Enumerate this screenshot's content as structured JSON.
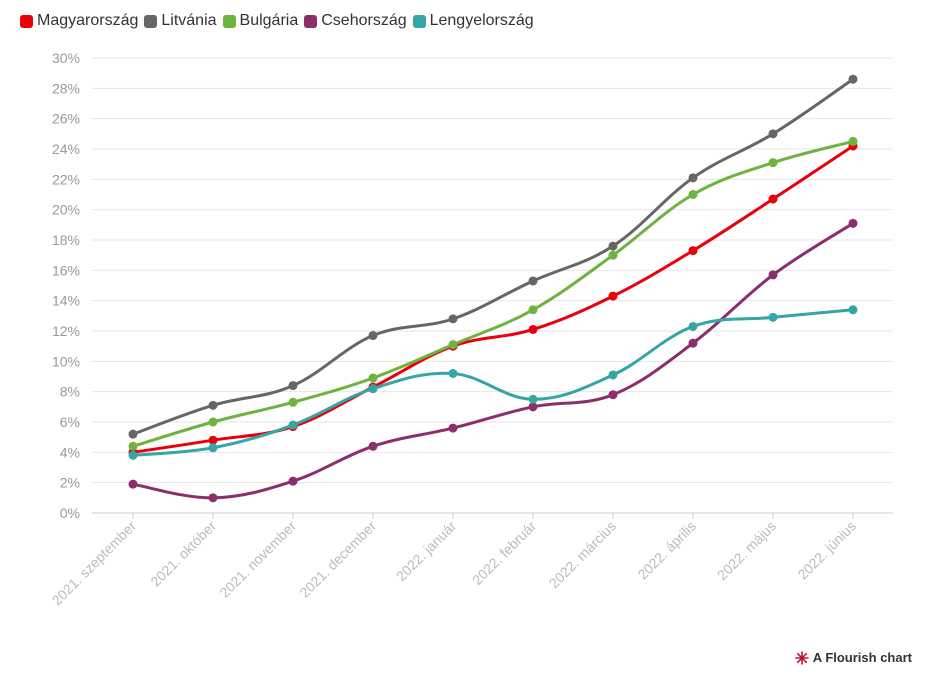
{
  "chart_data": {
    "type": "line",
    "categories": [
      "2021. szeptember",
      "2021. október",
      "2021. november",
      "2021. december",
      "2022. január",
      "2022. február",
      "2022. március",
      "2022. április",
      "2022. május",
      "2022. június"
    ],
    "series": [
      {
        "name": "Magyarország",
        "color": "#e8000b",
        "values": [
          4.0,
          4.8,
          5.7,
          8.3,
          11.0,
          12.1,
          14.3,
          17.3,
          20.7,
          24.2
        ]
      },
      {
        "name": "Litvánia",
        "color": "#666666",
        "values": [
          5.2,
          7.1,
          8.4,
          11.7,
          12.8,
          15.3,
          17.6,
          22.1,
          25.0,
          28.6
        ]
      },
      {
        "name": "Bulgária",
        "color": "#6db33f",
        "values": [
          4.4,
          6.0,
          7.3,
          8.9,
          11.1,
          13.4,
          17.0,
          21.0,
          23.1,
          24.5
        ]
      },
      {
        "name": "Csehország",
        "color": "#8b2e6e",
        "values": [
          1.9,
          1.0,
          2.1,
          4.4,
          5.6,
          7.0,
          7.8,
          11.2,
          15.7,
          19.1
        ]
      },
      {
        "name": "Lengyelország",
        "color": "#36a5a5",
        "values": [
          3.8,
          4.3,
          5.8,
          8.2,
          9.2,
          7.5,
          9.1,
          12.3,
          12.9,
          13.4
        ]
      }
    ],
    "ylim": [
      0,
      30
    ],
    "yticks": [
      0,
      2,
      4,
      6,
      8,
      10,
      12,
      14,
      16,
      18,
      20,
      22,
      24,
      26,
      28,
      30
    ],
    "ytick_suffix": "%",
    "grid": true,
    "legend_position": "top-left"
  },
  "credit": {
    "label": "A Flourish chart"
  }
}
